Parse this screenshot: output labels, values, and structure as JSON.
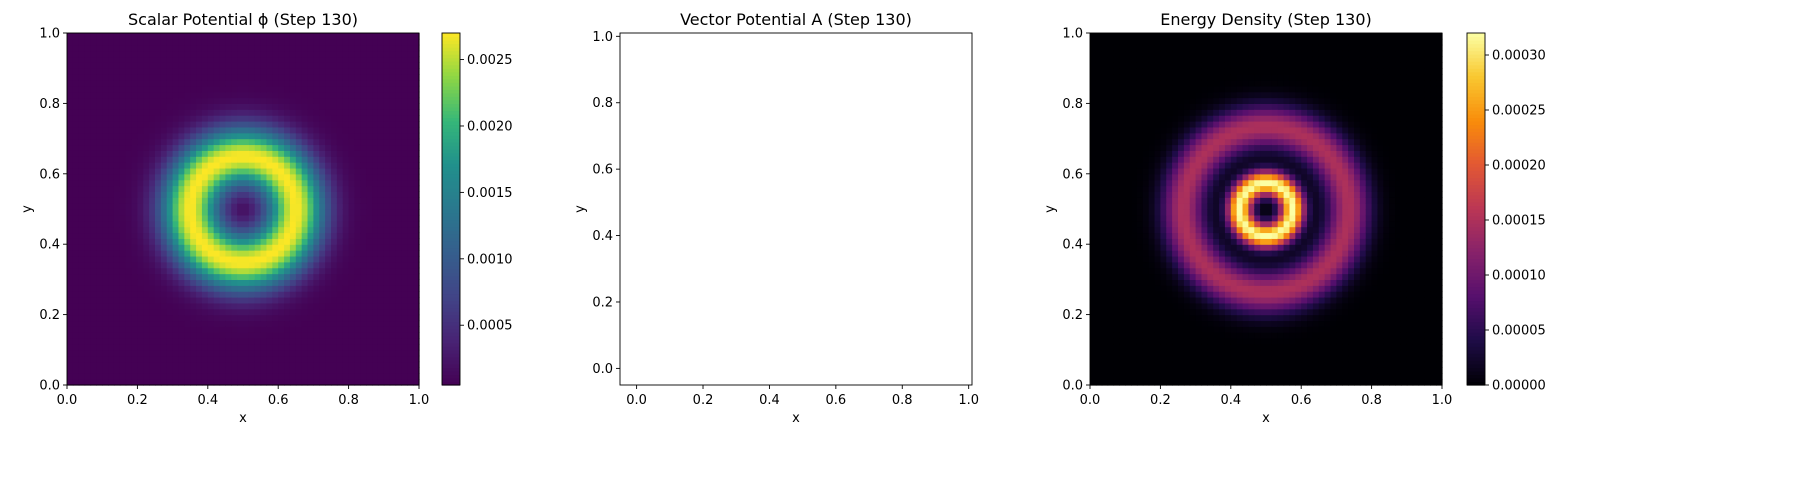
{
  "chart_data": [
    {
      "type": "heatmap",
      "title": "Scalar Potential ϕ (Step 130)",
      "xlabel": "x",
      "ylabel": "y",
      "xlim": [
        0.0,
        1.0
      ],
      "ylim": [
        0.0,
        1.0
      ],
      "xticks": [
        "0.0",
        "0.2",
        "0.4",
        "0.6",
        "0.8",
        "1.0"
      ],
      "yticks": [
        "0.0",
        "0.2",
        "0.4",
        "0.6",
        "0.8",
        "1.0"
      ],
      "colormap": "viridis",
      "colorbar": {
        "range": [
          5e-05,
          0.0027
        ],
        "ticks": [
          {
            "value": 0.0005,
            "label": "0.0005"
          },
          {
            "value": 0.001,
            "label": "0.0010"
          },
          {
            "value": 0.0015,
            "label": "0.0015"
          },
          {
            "value": 0.002,
            "label": "0.0020"
          },
          {
            "value": 0.0025,
            "label": "0.0025"
          }
        ]
      },
      "field": {
        "pattern": "ring",
        "center": [
          0.5,
          0.5
        ],
        "ring_radius": 0.15,
        "ring_width": 0.085,
        "grid": 60
      },
      "grid": false
    },
    {
      "type": "empty",
      "title": "Vector Potential A (Step 130)",
      "xlabel": "x",
      "ylabel": "y",
      "xlim": [
        -0.05,
        1.01
      ],
      "ylim": [
        -0.05,
        1.01
      ],
      "xticks": [
        "0.0",
        "0.2",
        "0.4",
        "0.6",
        "0.8",
        "1.0"
      ],
      "yticks": [
        "0.0",
        "0.2",
        "0.4",
        "0.6",
        "0.8",
        "1.0"
      ],
      "grid": false
    },
    {
      "type": "heatmap",
      "title": "Energy Density (Step 130)",
      "xlabel": "x",
      "ylabel": "y",
      "xlim": [
        0.0,
        1.0
      ],
      "ylim": [
        0.0,
        1.0
      ],
      "xticks": [
        "0.0",
        "0.2",
        "0.4",
        "0.6",
        "0.8",
        "1.0"
      ],
      "yticks": [
        "0.0",
        "0.2",
        "0.4",
        "0.6",
        "0.8",
        "1.0"
      ],
      "colormap": "inferno",
      "colorbar": {
        "range": [
          0.0,
          0.00032
        ],
        "ticks": [
          {
            "value": 0.0,
            "label": "0.00000"
          },
          {
            "value": 5e-05,
            "label": "0.00005"
          },
          {
            "value": 0.0001,
            "label": "0.00010"
          },
          {
            "value": 0.00015,
            "label": "0.00015"
          },
          {
            "value": 0.0002,
            "label": "0.00020"
          },
          {
            "value": 0.00025,
            "label": "0.00025"
          },
          {
            "value": 0.0003,
            "label": "0.00030"
          }
        ]
      },
      "field": {
        "pattern": "double-ring",
        "center": [
          0.5,
          0.5
        ],
        "inner_ring_radius": 0.075,
        "inner_ring_width": 0.035,
        "inner_ring_peak": 0.00032,
        "outer_ring_radius": 0.235,
        "outer_ring_width": 0.06,
        "outer_ring_peak": 0.00015,
        "grid": 60
      },
      "grid": false
    }
  ]
}
